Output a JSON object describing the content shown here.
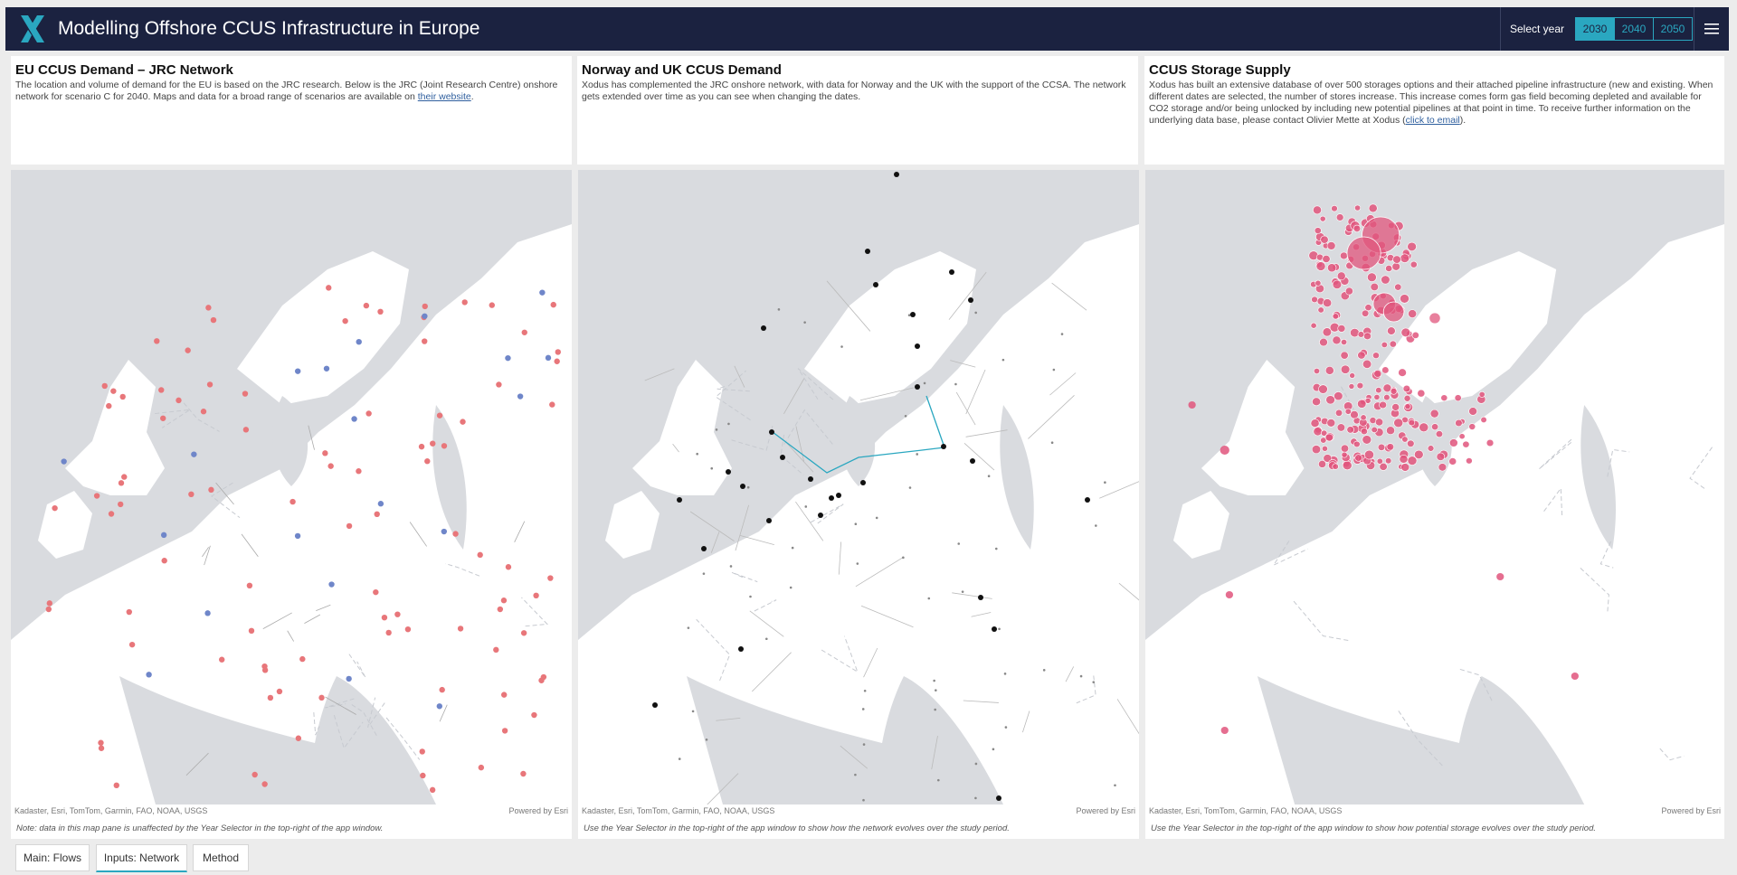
{
  "app": {
    "title": "Modelling Offshore CCUS Infrastructure in Europe",
    "year_label": "Select year",
    "years": [
      "2030",
      "2040",
      "2050"
    ],
    "selected_year": "2030",
    "logo_icon": "x-logo-icon",
    "menu_icon": "hamburger-menu-icon"
  },
  "panels": [
    {
      "title": "EU CCUS Demand – JRC Network",
      "text": "The location and volume of demand for the EU is based on the JRC research. Below is the JRC (Joint Research Centre) onshore network for scenario C for 2040. Maps and data for a broad range of scenarios are available on ",
      "link": "their website",
      "text_after": ".",
      "attribution": "Kadaster, Esri, TomTom, Garmin, FAO, NOAA, USGS",
      "powered": "Powered by Esri",
      "note": "Note: data in this map pane is unaffected by the Year Selector in the top-right of the app window."
    },
    {
      "title": "Norway and UK CCUS Demand",
      "text": "Xodus has complemented the JRC onshore network, with data for Norway and the UK with the support of the CCSA. The network gets extended over time as you can see when changing the dates.",
      "link": "",
      "text_after": "",
      "attribution": "Kadaster, Esri, TomTom, Garmin, FAO, NOAA, USGS",
      "powered": "Powered by Esri",
      "note": "Use the Year Selector in the top-right of the app window to show how the network evolves over the study period."
    },
    {
      "title": "CCUS Storage Supply",
      "text": "Xodus has built an extensive database of over 500 storages options and their attached pipeline infrastructure (new and existing. When different dates are selected, the number of stores increase. This increase comes form gas field becoming depleted and available for CO2 storage and/or being unlocked by including new potential pipelines at that point in time. To receive further information on the underlying data base, please contact Olivier Mette at Xodus (",
      "link": "click to email",
      "text_after": ").",
      "attribution": "Kadaster, Esri, TomTom, Garmin, FAO, NOAA, USGS",
      "powered": "Powered by Esri",
      "note": "Use the Year Selector in the top-right of the app window to show how potential storage evolves over the study period."
    }
  ],
  "tabs": [
    {
      "label": "Main: Flows",
      "active": false
    },
    {
      "label": "Inputs: Network",
      "active": true
    },
    {
      "label": "Method",
      "active": false
    }
  ],
  "colors": {
    "header": "#1b2240",
    "accent": "#2aa7c0",
    "sea": "#d9dbdf",
    "land": "#ffffff",
    "demand_red": "#e8767a",
    "demand_blue": "#6f86c9",
    "node_black": "#111111",
    "storage_pink": "#e0557c"
  }
}
